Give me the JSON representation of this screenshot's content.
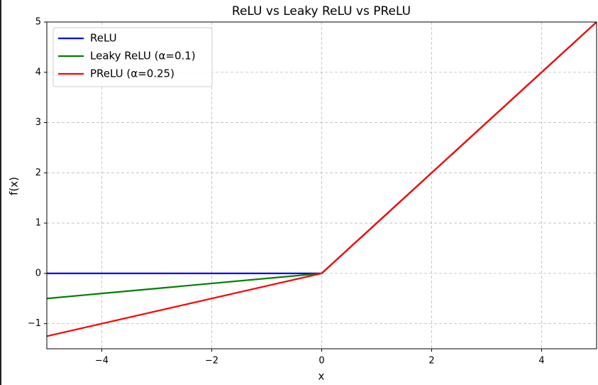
{
  "chart_data": {
    "type": "line",
    "title": "ReLU vs Leaky ReLU vs PReLU",
    "xlabel": "x",
    "ylabel": "f(x)",
    "x": [
      -5,
      0,
      5
    ],
    "series": [
      {
        "name": "ReLU",
        "color": "#0000ff",
        "values": [
          0,
          0,
          5
        ]
      },
      {
        "name": "Leaky ReLU (α=0.1)",
        "color": "#008000",
        "values": [
          -0.5,
          0,
          5
        ]
      },
      {
        "name": "PReLU (α=0.25)",
        "color": "#ff0000",
        "values": [
          -1.25,
          0,
          5
        ]
      }
    ],
    "xlim": [
      -5,
      5
    ],
    "xticks": [
      {
        "value": -4,
        "label": "−4"
      },
      {
        "value": -2,
        "label": "−2"
      },
      0,
      2,
      4
    ],
    "ylim": [
      -1.5,
      5
    ],
    "yticks": [
      {
        "value": -1,
        "label": "−1"
      },
      0,
      1,
      2,
      3,
      4,
      5
    ],
    "grid": true,
    "legend": "upper left"
  }
}
